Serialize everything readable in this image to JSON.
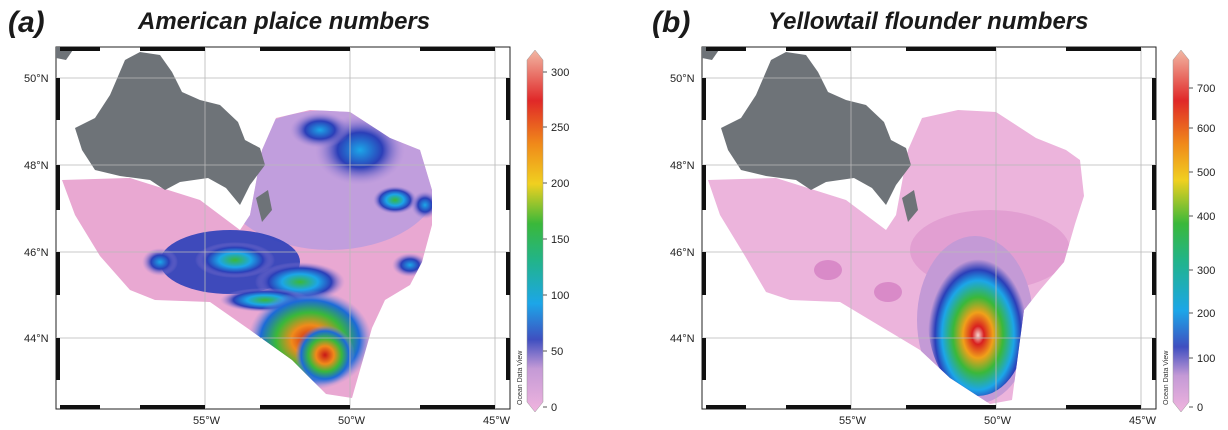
{
  "panels": [
    {
      "letter": "(a)",
      "title": "American plaice numbers",
      "lat_labels": [
        "50°N",
        "48°N",
        "46°N",
        "44°N"
      ],
      "lon_labels": [
        "55°W",
        "50°W",
        "45°W"
      ],
      "colorbar_ticks": [
        "300",
        "250",
        "200",
        "150",
        "100",
        "50",
        "0"
      ],
      "watermark": "Ocean Data View"
    },
    {
      "letter": "(b)",
      "title": "Yellowtail flounder numbers",
      "lat_labels": [
        "50°N",
        "48°N",
        "46°N",
        "44°N"
      ],
      "lon_labels": [
        "55°W",
        "50°W",
        "45°W"
      ],
      "colorbar_ticks": [
        "700",
        "600",
        "500",
        "400",
        "300",
        "200",
        "100",
        "0"
      ],
      "watermark": "Ocean Data View"
    }
  ],
  "colors": {
    "land": "#6e7378",
    "low": "#e9a6d0",
    "mid": "#2d5fd0",
    "high": "#d92020",
    "peak": "#f2c0b0",
    "grid": "#b8b8b8"
  }
}
